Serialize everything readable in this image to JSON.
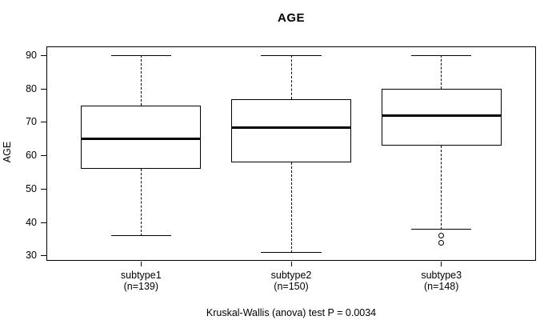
{
  "title": "AGE",
  "footer": "Kruskal-Wallis (anova) test P = 0.0034",
  "chart_data": {
    "type": "boxplot",
    "title": "AGE",
    "xlabel": "",
    "ylabel": "AGE",
    "ylim": [
      28.8,
      92.5
    ],
    "yticks": [
      30,
      40,
      50,
      60,
      70,
      80,
      90
    ],
    "xlim": [
      0.375,
      3.625
    ],
    "box_width": 0.8,
    "grid": false,
    "legend": null,
    "annotation": "Kruskal-Wallis (anova) test P = 0.0034",
    "groups": [
      {
        "x": 1,
        "label": "subtype1",
        "sublabel": "(n=139)",
        "n": 139,
        "whisker_low": 36,
        "q1": 56,
        "median": 65,
        "q3": 75,
        "whisker_high": 90,
        "outliers": []
      },
      {
        "x": 2,
        "label": "subtype2",
        "sublabel": "(n=150)",
        "n": 150,
        "whisker_low": 31,
        "q1": 58,
        "median": 68.5,
        "q3": 77,
        "whisker_high": 90,
        "outliers": []
      },
      {
        "x": 3,
        "label": "subtype3",
        "sublabel": "(n=148)",
        "n": 148,
        "whisker_low": 38,
        "q1": 63,
        "median": 72,
        "q3": 80,
        "whisker_high": 90,
        "outliers": [
          36,
          34
        ]
      }
    ],
    "colors": {
      "line": "#000000",
      "box_fill": "#ffffff",
      "background": "#ffffff"
    }
  }
}
